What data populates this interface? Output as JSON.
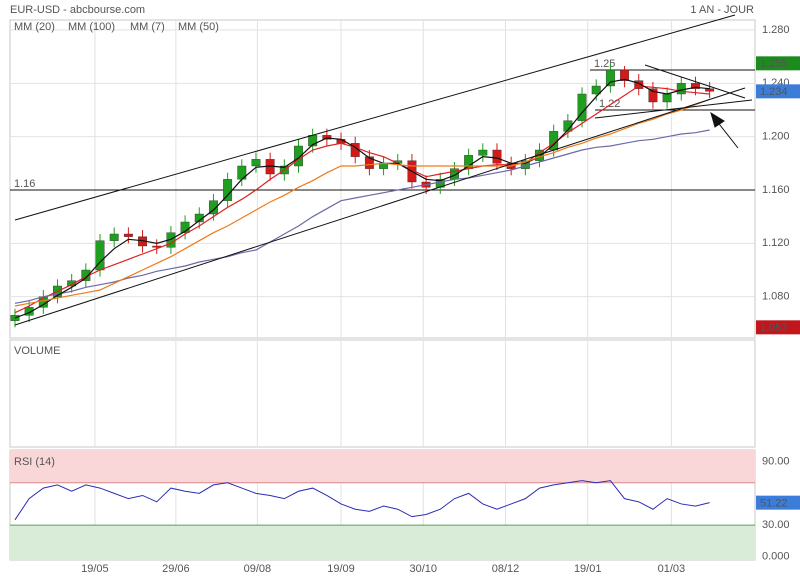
{
  "header": {
    "title": "EUR-USD - abcbourse.com",
    "period": "1 AN - JOUR"
  },
  "chart_data": [
    {
      "type": "candlestick",
      "up_color": "#1f9e1f",
      "down_color": "#d11a1a",
      "open": [
        1.062,
        1.066,
        1.072,
        1.08,
        1.088,
        1.092,
        1.1,
        1.122,
        1.127,
        1.125,
        1.118,
        1.117,
        1.128,
        1.136,
        1.142,
        1.152,
        1.168,
        1.178,
        1.183,
        1.172,
        1.178,
        1.193,
        1.201,
        1.198,
        1.195,
        1.185,
        1.176,
        1.18,
        1.182,
        1.166,
        1.162,
        1.168,
        1.176,
        1.186,
        1.19,
        1.18,
        1.176,
        1.182,
        1.19,
        1.204,
        1.212,
        1.232,
        1.238,
        1.25,
        1.242,
        1.236,
        1.226,
        1.232,
        1.24,
        1.236
      ],
      "high": [
        1.071,
        1.077,
        1.085,
        1.093,
        1.097,
        1.105,
        1.127,
        1.132,
        1.132,
        1.13,
        1.123,
        1.133,
        1.141,
        1.147,
        1.157,
        1.173,
        1.183,
        1.188,
        1.188,
        1.183,
        1.198,
        1.206,
        1.206,
        1.203,
        1.2,
        1.19,
        1.185,
        1.187,
        1.187,
        1.171,
        1.173,
        1.181,
        1.191,
        1.195,
        1.195,
        1.185,
        1.187,
        1.195,
        1.209,
        1.217,
        1.237,
        1.243,
        1.255,
        1.253,
        1.247,
        1.241,
        1.237,
        1.245,
        1.245,
        1.241
      ],
      "low": [
        1.057,
        1.061,
        1.067,
        1.075,
        1.083,
        1.087,
        1.095,
        1.117,
        1.12,
        1.113,
        1.112,
        1.112,
        1.123,
        1.131,
        1.137,
        1.147,
        1.163,
        1.173,
        1.167,
        1.167,
        1.173,
        1.188,
        1.193,
        1.19,
        1.18,
        1.171,
        1.171,
        1.175,
        1.161,
        1.157,
        1.157,
        1.163,
        1.171,
        1.181,
        1.175,
        1.171,
        1.171,
        1.177,
        1.185,
        1.199,
        1.207,
        1.227,
        1.233,
        1.237,
        1.231,
        1.221,
        1.221,
        1.227,
        1.231,
        1.229
      ],
      "close": [
        1.066,
        1.072,
        1.08,
        1.088,
        1.092,
        1.1,
        1.122,
        1.127,
        1.125,
        1.118,
        1.117,
        1.128,
        1.136,
        1.142,
        1.152,
        1.168,
        1.178,
        1.183,
        1.172,
        1.178,
        1.193,
        1.201,
        1.198,
        1.195,
        1.185,
        1.176,
        1.18,
        1.182,
        1.166,
        1.162,
        1.168,
        1.176,
        1.186,
        1.19,
        1.18,
        1.176,
        1.182,
        1.19,
        1.204,
        1.212,
        1.232,
        1.238,
        1.25,
        1.242,
        1.236,
        1.226,
        1.232,
        1.24,
        1.236,
        1.234
      ],
      "series": [
        {
          "name": "MM (20)",
          "color": "#e02020",
          "values": [
            1.068,
            1.073,
            1.079,
            1.084,
            1.089,
            1.095,
            1.1,
            1.104,
            1.108,
            1.112,
            1.116,
            1.12,
            1.127,
            1.133,
            1.14,
            1.147,
            1.153,
            1.16,
            1.168,
            1.175,
            1.183,
            1.19,
            1.193,
            1.195,
            1.192,
            1.188,
            1.185,
            1.18,
            1.175,
            1.17,
            1.172,
            1.174,
            1.176,
            1.178,
            1.179,
            1.179,
            1.18,
            1.188,
            1.195,
            1.203,
            1.21,
            1.217,
            1.224,
            1.231,
            1.238,
            1.237,
            1.236,
            1.234,
            1.233,
            1.232
          ]
        },
        {
          "name": "MM (100)",
          "color": "#6a6aa8",
          "values": [
            1.075,
            1.077,
            1.08,
            1.082,
            1.084,
            1.087,
            1.089,
            1.091,
            1.094,
            1.096,
            1.099,
            1.101,
            1.103,
            1.106,
            1.108,
            1.11,
            1.113,
            1.115,
            1.121,
            1.127,
            1.133,
            1.14,
            1.146,
            1.152,
            1.154,
            1.156,
            1.158,
            1.16,
            1.162,
            1.164,
            1.166,
            1.168,
            1.169,
            1.171,
            1.173,
            1.175,
            1.178,
            1.181,
            1.184,
            1.187,
            1.19,
            1.192,
            1.193,
            1.195,
            1.197,
            1.198,
            1.2,
            1.202,
            1.203,
            1.205
          ]
        },
        {
          "name": "MM (7)",
          "color": "#111111",
          "values": [
            1.064,
            1.068,
            1.074,
            1.081,
            1.087,
            1.094,
            1.106,
            1.116,
            1.123,
            1.122,
            1.12,
            1.123,
            1.129,
            1.137,
            1.145,
            1.156,
            1.168,
            1.177,
            1.178,
            1.177,
            1.184,
            1.194,
            1.199,
            1.198,
            1.192,
            1.184,
            1.18,
            1.18,
            1.174,
            1.168,
            1.167,
            1.171,
            1.178,
            1.185,
            1.184,
            1.18,
            1.18,
            1.185,
            1.194,
            1.205,
            1.218,
            1.23,
            1.241,
            1.243,
            1.24,
            1.234,
            1.232,
            1.235,
            1.237,
            1.236
          ]
        },
        {
          "name": "MM (50)",
          "color": "#f07a1a",
          "values": [
            1.073,
            1.075,
            1.077,
            1.079,
            1.081,
            1.083,
            1.085,
            1.09,
            1.095,
            1.1,
            1.105,
            1.11,
            1.116,
            1.122,
            1.128,
            1.133,
            1.139,
            1.145,
            1.151,
            1.156,
            1.162,
            1.167,
            1.173,
            1.178,
            1.178,
            1.179,
            1.18,
            1.179,
            1.178,
            1.178,
            1.178,
            1.178,
            1.178,
            1.178,
            1.178,
            1.178,
            1.181,
            1.185,
            1.188,
            1.192,
            1.195,
            1.199,
            1.202,
            1.206,
            1.21,
            1.213,
            1.217,
            1.22,
            1.224,
            1.228
          ]
        }
      ],
      "xlim": [
        -0.35,
        52.2
      ],
      "xticks": [
        {
          "value": 5.64,
          "label": "19/05"
        },
        {
          "value": 11.35,
          "label": "29/06"
        },
        {
          "value": 17.1,
          "label": "09/08"
        },
        {
          "value": 23.0,
          "label": "19/09"
        },
        {
          "value": 28.8,
          "label": "30/10"
        },
        {
          "value": 34.6,
          "label": "08/12"
        },
        {
          "value": 40.4,
          "label": "19/01"
        },
        {
          "value": 46.3,
          "label": "01/03"
        }
      ],
      "ylim": [
        1.049,
        1.2875
      ],
      "yticks": [
        {
          "value": 1.08,
          "label": "1.080"
        },
        {
          "value": 1.12,
          "label": "1.120"
        },
        {
          "value": 1.16,
          "label": "1.160"
        },
        {
          "value": 1.2,
          "label": "1.200"
        },
        {
          "value": 1.24,
          "label": "1.240"
        },
        {
          "value": 1.28,
          "label": "1.280"
        }
      ],
      "grid": true,
      "levels": [
        {
          "value": 1.16,
          "label": "1.16"
        },
        {
          "value": 1.25,
          "label": "1.25"
        },
        {
          "value": 1.22,
          "label": "1.22"
        }
      ],
      "markers": [
        {
          "value": 1.255,
          "color": "#1d8a1d"
        },
        {
          "value": 1.234,
          "color": "#3b7dd8"
        },
        {
          "value": 1.057,
          "color": "#c0161c"
        }
      ]
    },
    {
      "type": "volume",
      "title": "VOLUME"
    },
    {
      "type": "line",
      "series": [
        {
          "name": "RSI (14)",
          "color": "#2b2bb8",
          "values": [
            35,
            55,
            65,
            68,
            62,
            68,
            65,
            60,
            55,
            58,
            52,
            65,
            62,
            60,
            68,
            70,
            65,
            60,
            58,
            55,
            62,
            65,
            58,
            50,
            45,
            43,
            48,
            45,
            38,
            40,
            45,
            55,
            60,
            50,
            45,
            50,
            55,
            65,
            68,
            70,
            72,
            70,
            72,
            55,
            52,
            45,
            55,
            50,
            48,
            51.22
          ]
        }
      ],
      "ylim": [
        -3,
        101
      ],
      "yticks": [
        {
          "value": 0,
          "label": "0.000"
        },
        {
          "value": 30,
          "label": "30.00"
        },
        {
          "value": 90,
          "label": "90.00"
        }
      ],
      "zones": {
        "upper": 70,
        "lower": 30,
        "upper_color": "#f9d6d8",
        "lower_color": "#d8ecd8"
      },
      "markers": [
        {
          "value": 51.22,
          "color": "#3b7dd8"
        }
      ]
    }
  ]
}
